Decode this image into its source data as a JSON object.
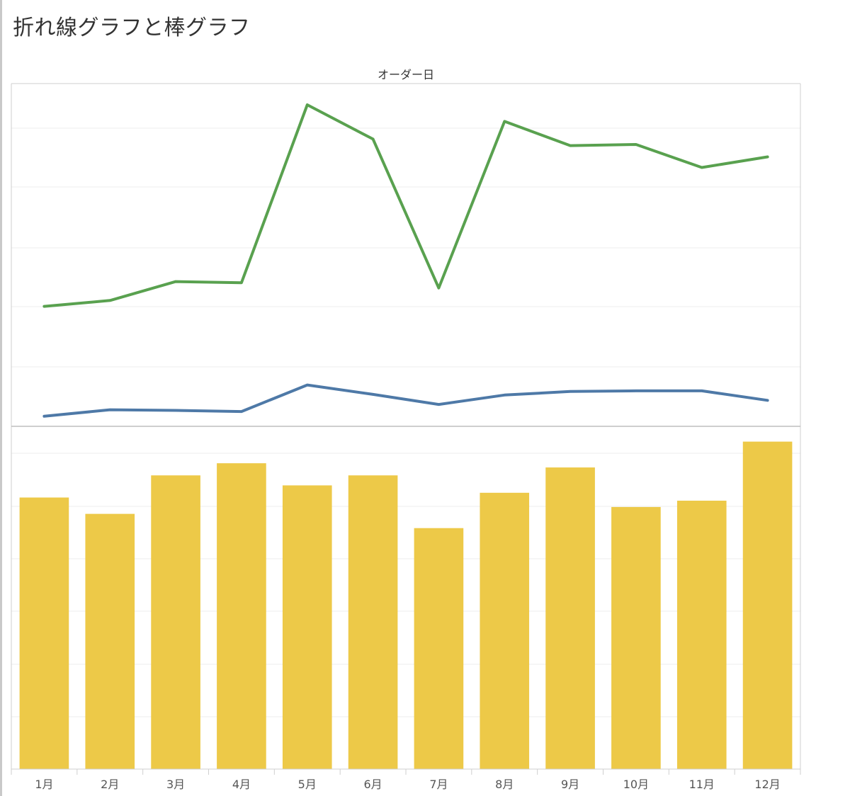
{
  "title": "折れ線グラフと棒グラフ",
  "column_header": "オーダー日",
  "colors": {
    "line_upper": "#59a14f",
    "line_lower": "#4e79a7",
    "bar": "#edc948",
    "grid": "#ececec",
    "frame": "#cfcfcf",
    "divider": "#bdbdbd"
  },
  "chart_data": [
    {
      "type": "line",
      "categories": [
        "1月",
        "2月",
        "3月",
        "4月",
        "5月",
        "6月",
        "7月",
        "8月",
        "9月",
        "10月",
        "11月",
        "12月"
      ],
      "series": [
        {
          "values": [
            2.03,
            2.13,
            2.45,
            2.43,
            5.44,
            4.86,
            2.34,
            5.16,
            4.75,
            4.77,
            4.38,
            4.56
          ]
        },
        {
          "values": [
            0.17,
            0.28,
            0.27,
            0.25,
            0.7,
            0.54,
            0.37,
            0.53,
            0.59,
            0.6,
            0.6,
            0.44
          ]
        }
      ],
      "ylim": [
        0,
        5.8
      ],
      "grid": true
    },
    {
      "type": "bar",
      "categories": [
        "1月",
        "2月",
        "3月",
        "4月",
        "5月",
        "6月",
        "7月",
        "8月",
        "9月",
        "10月",
        "11月",
        "12月"
      ],
      "values": [
        5.15,
        4.84,
        5.57,
        5.8,
        5.38,
        5.57,
        4.57,
        5.24,
        5.72,
        4.97,
        5.09,
        6.21
      ],
      "ylim": [
        0,
        6.5
      ],
      "grid": true
    }
  ]
}
